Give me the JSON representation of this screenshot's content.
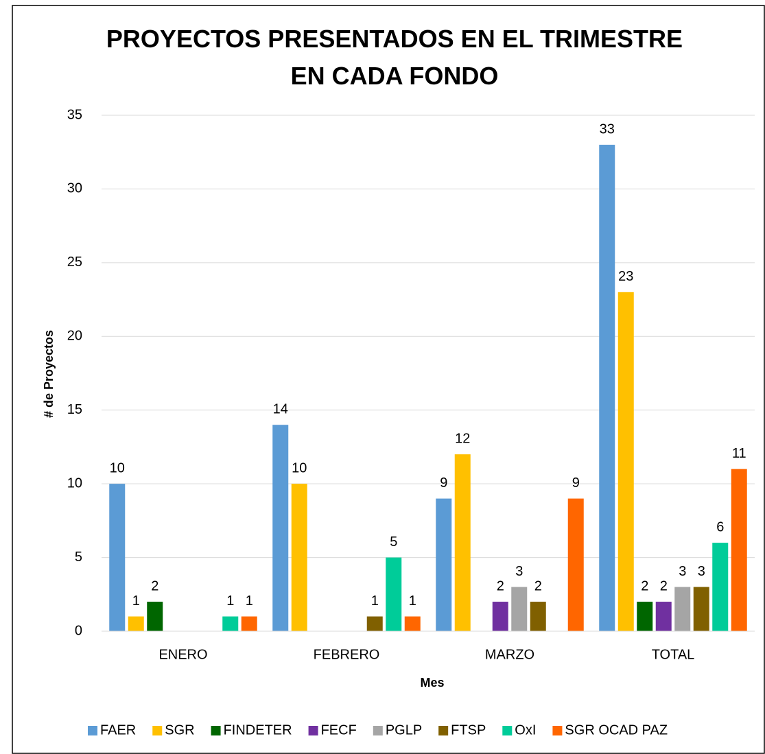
{
  "chart_data": {
    "type": "bar",
    "title": "PROYECTOS PRESENTADOS EN EL TRIMESTRE EN CADA FONDO",
    "x_label": "Mes",
    "y_label": "# de Proyectos",
    "categories": [
      "ENERO",
      "FEBRERO",
      "MARZO",
      "TOTAL"
    ],
    "series": [
      {
        "name": "FAER",
        "color": "#5b9bd5",
        "values": [
          10,
          14,
          9,
          33
        ]
      },
      {
        "name": "SGR",
        "color": "#ffc000",
        "values": [
          1,
          10,
          12,
          23
        ]
      },
      {
        "name": "FINDETER",
        "color": "#006600",
        "values": [
          2,
          null,
          null,
          2
        ]
      },
      {
        "name": "FECF",
        "color": "#7030a0",
        "values": [
          null,
          null,
          2,
          2
        ]
      },
      {
        "name": "PGLP",
        "color": "#a5a5a5",
        "values": [
          null,
          null,
          3,
          3
        ]
      },
      {
        "name": "FTSP",
        "color": "#806000",
        "values": [
          null,
          1,
          2,
          3
        ]
      },
      {
        "name": "OxI",
        "color": "#00cc99",
        "values": [
          1,
          5,
          null,
          6
        ]
      },
      {
        "name": "SGR OCAD PAZ",
        "color": "#ff6600",
        "values": [
          1,
          1,
          9,
          11
        ]
      }
    ],
    "ylim": [
      0,
      35
    ],
    "yticks": [
      0,
      5,
      10,
      15,
      20,
      25,
      30,
      35
    ],
    "grid": true,
    "legend": "bottom"
  }
}
